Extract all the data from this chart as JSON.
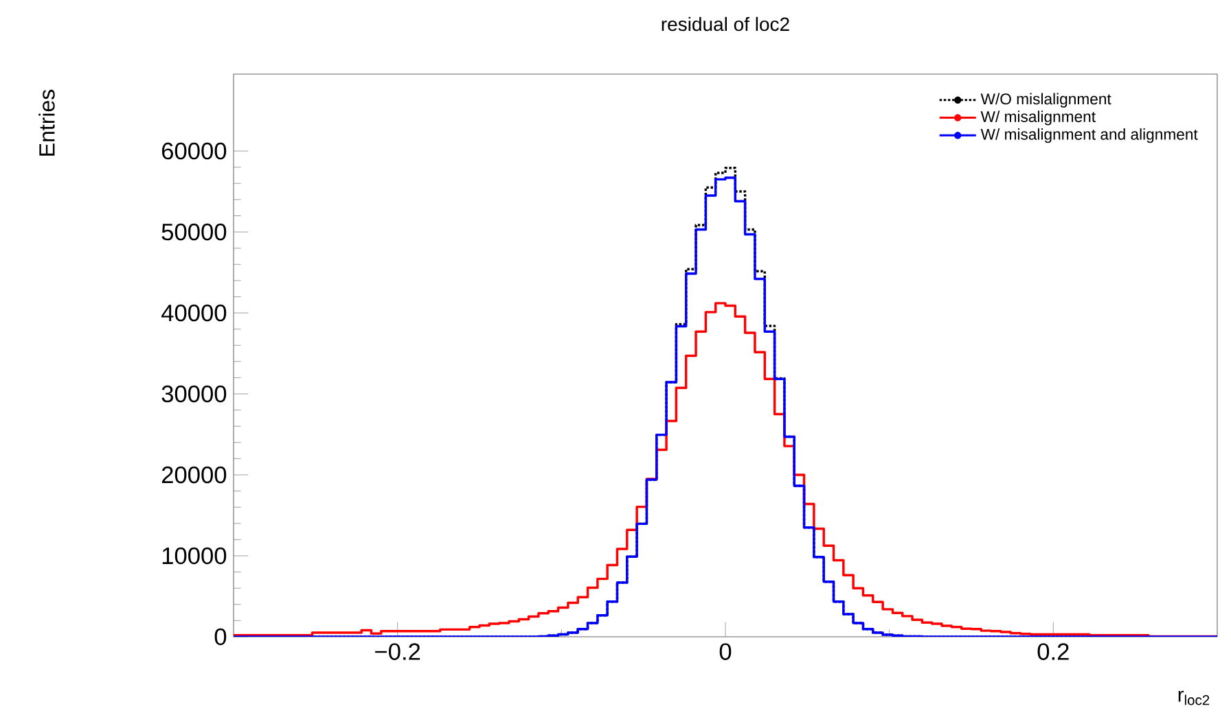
{
  "chart_data": {
    "type": "histogram",
    "title": "residual of loc2",
    "xlabel": "r$_{loc2}$",
    "ylabel": "Entries",
    "bins": [
      -0.3,
      -0.294,
      -0.288,
      -0.282,
      -0.276,
      -0.27,
      -0.264,
      -0.258,
      -0.252,
      -0.246,
      -0.24,
      -0.234,
      -0.228,
      -0.222,
      -0.216,
      -0.21,
      -0.204,
      -0.198,
      -0.192,
      -0.186,
      -0.18,
      -0.174,
      -0.168,
      -0.162,
      -0.156,
      -0.15,
      -0.144,
      -0.138,
      -0.132,
      -0.126,
      -0.12,
      -0.114,
      -0.108,
      -0.102,
      -0.096,
      -0.09,
      -0.084,
      -0.078,
      -0.072,
      -0.066,
      -0.06,
      -0.054,
      -0.048,
      -0.042,
      -0.036,
      -0.03,
      -0.024,
      -0.018,
      -0.012,
      -0.006,
      0,
      0.006,
      0.012,
      0.018,
      0.024,
      0.03,
      0.036,
      0.042,
      0.048,
      0.054,
      0.06,
      0.066,
      0.072,
      0.078,
      0.084,
      0.09,
      0.096,
      0.102,
      0.108,
      0.114,
      0.12,
      0.126,
      0.132,
      0.138,
      0.144,
      0.15,
      0.156,
      0.162,
      0.168,
      0.174,
      0.18,
      0.186,
      0.192,
      0.198,
      0.204,
      0.21,
      0.216,
      0.222,
      0.228,
      0.234,
      0.24,
      0.246,
      0.252,
      0.258,
      0.264,
      0.27,
      0.276,
      0.282,
      0.288,
      0.294,
      0.3
    ],
    "series": [
      {
        "name": "W/O mislalignment",
        "color": "#000000",
        "line_style": "dotted",
        "values": [
          0,
          0,
          0,
          0,
          0,
          0,
          0,
          0,
          0,
          0,
          0,
          0,
          0,
          0,
          0,
          0,
          0,
          0,
          0,
          0,
          0,
          0,
          0,
          0,
          0,
          0,
          0,
          0,
          0,
          0,
          0,
          50,
          150,
          300,
          500,
          950,
          1700,
          2650,
          4350,
          6700,
          9900,
          13950,
          19400,
          24950,
          31450,
          38600,
          45400,
          50850,
          55500,
          57300,
          57900,
          55000,
          50300,
          45150,
          38400,
          31900,
          24700,
          18650,
          13500,
          9850,
          6800,
          4350,
          2800,
          1700,
          950,
          500,
          250,
          150,
          50,
          50,
          0,
          0,
          0,
          0,
          0,
          0,
          0,
          0,
          0,
          0,
          0,
          0,
          0,
          0,
          0,
          0,
          0,
          0,
          0,
          0,
          0,
          0,
          0,
          0,
          0,
          0,
          0,
          0,
          0,
          0
        ]
      },
      {
        "name": "W/ misalignment",
        "color": "#ff0000",
        "line_style": "solid",
        "values": [
          200,
          200,
          200,
          200,
          200,
          200,
          200,
          200,
          500,
          500,
          500,
          500,
          500,
          800,
          400,
          700,
          700,
          700,
          700,
          700,
          700,
          900,
          900,
          900,
          1200,
          1400,
          1600,
          1700,
          1900,
          2150,
          2500,
          2900,
          3150,
          3600,
          4200,
          4900,
          6050,
          7150,
          8850,
          10850,
          13200,
          16050,
          19500,
          23100,
          26650,
          30750,
          34700,
          37700,
          40100,
          41200,
          40900,
          39550,
          37550,
          35150,
          31850,
          27500,
          23550,
          20000,
          16400,
          13350,
          11250,
          9450,
          7600,
          6000,
          5100,
          4300,
          3400,
          2950,
          2550,
          2100,
          1750,
          1600,
          1350,
          1200,
          1000,
          950,
          750,
          700,
          600,
          450,
          350,
          300,
          300,
          300,
          300,
          300,
          300,
          200,
          200,
          200,
          200,
          200,
          200,
          50,
          50,
          50,
          50,
          50,
          50,
          50
        ]
      },
      {
        "name": "W/ misalignment and alignment",
        "color": "#0000ff",
        "line_style": "solid",
        "values": [
          0,
          0,
          0,
          0,
          0,
          0,
          0,
          0,
          0,
          0,
          0,
          0,
          0,
          0,
          0,
          0,
          0,
          0,
          0,
          0,
          0,
          0,
          0,
          0,
          0,
          0,
          0,
          0,
          0,
          0,
          0,
          50,
          150,
          300,
          500,
          950,
          1700,
          2650,
          4350,
          6700,
          9900,
          13950,
          19400,
          24950,
          31450,
          38350,
          44850,
          50300,
          54500,
          56500,
          56700,
          53800,
          49700,
          44200,
          37700,
          31850,
          24700,
          18650,
          13500,
          9850,
          6800,
          4350,
          2800,
          1700,
          950,
          500,
          250,
          150,
          50,
          50,
          0,
          0,
          0,
          0,
          0,
          0,
          0,
          0,
          0,
          0,
          0,
          0,
          0,
          0,
          0,
          0,
          0,
          0,
          0,
          0,
          0,
          0,
          0,
          0,
          0,
          0,
          0,
          0,
          0,
          0
        ]
      }
    ],
    "xlim": [
      -0.3,
      0.3
    ],
    "xticks": [
      {
        "value": -0.2,
        "label": "−0.2"
      },
      0,
      0.2
    ],
    "ylim": [
      0,
      69500
    ],
    "yticks": [
      0,
      10000,
      20000,
      30000,
      40000,
      50000,
      60000
    ],
    "legend": "top right"
  }
}
